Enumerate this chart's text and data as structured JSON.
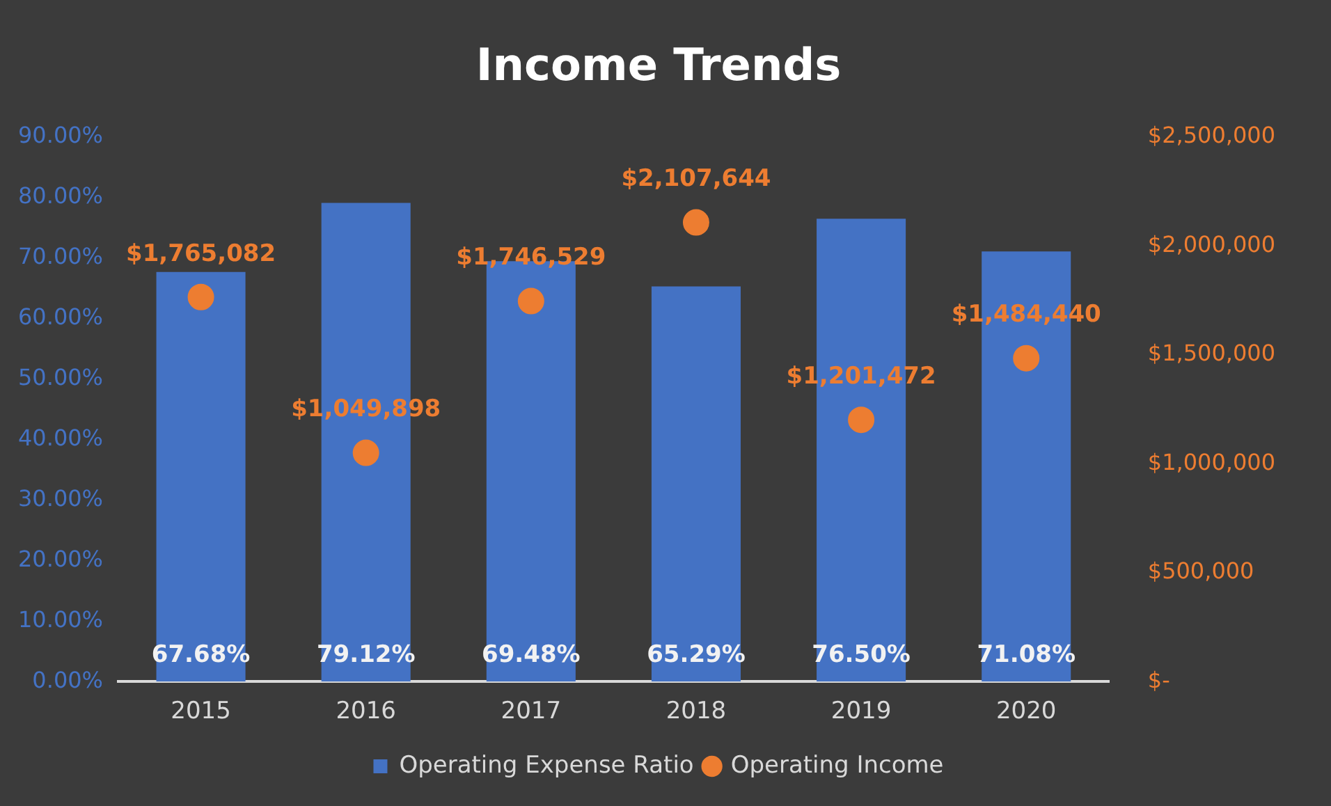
{
  "chart_data": {
    "type": "bar",
    "title": "Income Trends",
    "categories": [
      "2015",
      "2016",
      "2017",
      "2018",
      "2019",
      "2020"
    ],
    "series": [
      {
        "name": "Operating Expense Ratio",
        "color": "#4472c4",
        "values": [
          67.68,
          79.12,
          69.48,
          65.29,
          76.5,
          71.08
        ],
        "value_labels": [
          "67.68%",
          "79.12%",
          "69.48%",
          "65.29%",
          "76.50%",
          "71.08%"
        ]
      },
      {
        "name": "Operating Income",
        "type": "scatter",
        "axis": "y2",
        "color": "#ed7d31",
        "values": [
          1765082,
          1049898,
          1746529,
          2107644,
          1201472,
          1484440
        ],
        "value_labels": [
          "$1,765,082",
          "$1,049,898",
          "$1,746,529",
          "$2,107,644",
          "$1,201,472",
          "$1,484,440"
        ]
      }
    ],
    "ylim": [
      0,
      90
    ],
    "yticks": [
      {
        "value": 0,
        "label": "0.00%"
      },
      {
        "value": 10,
        "label": "10.00%"
      },
      {
        "value": 20,
        "label": "20.00%"
      },
      {
        "value": 30,
        "label": "30.00%"
      },
      {
        "value": 40,
        "label": "40.00%"
      },
      {
        "value": 50,
        "label": "50.00%"
      },
      {
        "value": 60,
        "label": "60.00%"
      },
      {
        "value": 70,
        "label": "70.00%"
      },
      {
        "value": 80,
        "label": "80.00%"
      },
      {
        "value": 90,
        "label": "90.00%"
      }
    ],
    "y2lim": [
      0,
      2500000
    ],
    "y2ticks": [
      {
        "value": 0,
        "label": "$-"
      },
      {
        "value": 500000,
        "label": "$500,000"
      },
      {
        "value": 1000000,
        "label": "$1,000,000"
      },
      {
        "value": 1500000,
        "label": "$1,500,000"
      },
      {
        "value": 2000000,
        "label": "$2,000,000"
      },
      {
        "value": 2500000,
        "label": "$2,500,000"
      }
    ],
    "legend": "bottom",
    "marker": "circle"
  }
}
